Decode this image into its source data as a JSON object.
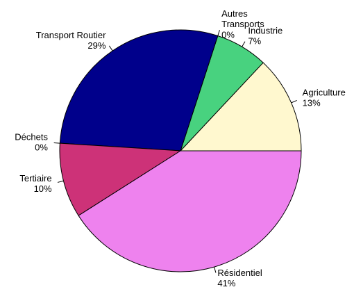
{
  "chart_data": {
    "type": "pie",
    "categories": [
      "Agriculture",
      "Industrie",
      "Autres\nTransports",
      "Transport Routier",
      "Déchets",
      "Tertiaire",
      "Résidentiel"
    ],
    "values": [
      13,
      7,
      0,
      29,
      0,
      10,
      41
    ],
    "value_labels": [
      "13%",
      "7%",
      "0%",
      "29%",
      "0%",
      "10%",
      "41%"
    ],
    "colors": [
      "#FFF8CF",
      "#48D27F",
      "#6A5ACD",
      "#00008B",
      "#8B4513",
      "#CD3278",
      "#EE82EE"
    ]
  }
}
